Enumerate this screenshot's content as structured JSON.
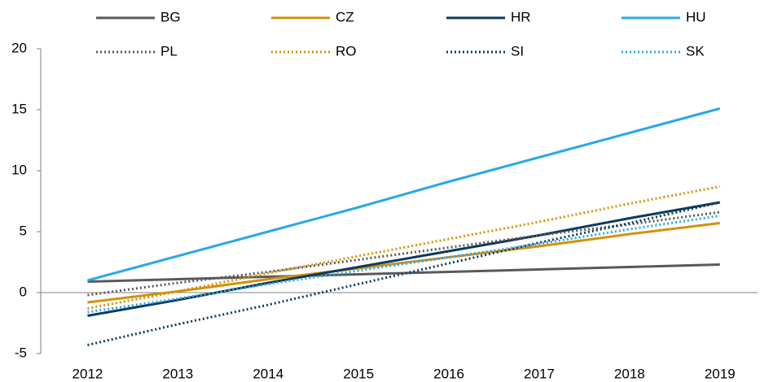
{
  "chart_data": {
    "type": "line",
    "categories": [
      "2012",
      "2013",
      "2014",
      "2015",
      "2016",
      "2017",
      "2018",
      "2019"
    ],
    "series": [
      {
        "name": "BG",
        "color": "#595959",
        "style": "solid",
        "values": [
          0.9,
          1.1,
          1.3,
          1.5,
          1.7,
          1.9,
          2.1,
          2.3
        ]
      },
      {
        "name": "CZ",
        "color": "#d4900a",
        "style": "solid",
        "values": [
          -0.8,
          0.1,
          1.1,
          2.0,
          2.9,
          3.8,
          4.8,
          5.7
        ]
      },
      {
        "name": "HR",
        "color": "#0b3b5c",
        "style": "solid",
        "values": [
          -1.9,
          -0.6,
          0.8,
          2.1,
          3.4,
          4.7,
          6.1,
          7.4
        ]
      },
      {
        "name": "HU",
        "color": "#29a8e8",
        "style": "solid",
        "values": [
          1.0,
          3.0,
          5.0,
          7.0,
          9.1,
          11.1,
          13.1,
          15.1
        ]
      },
      {
        "name": "PL",
        "color": "#595959",
        "style": "dotted",
        "values": [
          -0.2,
          0.8,
          1.7,
          2.7,
          3.7,
          4.7,
          5.6,
          6.6
        ]
      },
      {
        "name": "RO",
        "color": "#d4900a",
        "style": "dotted",
        "values": [
          -1.3,
          0.1,
          1.6,
          3.0,
          4.4,
          5.8,
          7.3,
          8.7
        ]
      },
      {
        "name": "SI",
        "color": "#0b3b5c",
        "style": "dotted",
        "values": [
          -4.3,
          -2.6,
          -1.0,
          0.7,
          2.4,
          4.1,
          5.7,
          7.4
        ]
      },
      {
        "name": "SK",
        "color": "#29a8e8",
        "style": "dotted",
        "values": [
          -1.6,
          -0.5,
          0.7,
          1.8,
          2.9,
          4.0,
          5.2,
          6.3
        ]
      }
    ],
    "ylim": [
      -5,
      20
    ],
    "yticks": [
      -5,
      0,
      5,
      10,
      15,
      20
    ],
    "grid": false
  }
}
